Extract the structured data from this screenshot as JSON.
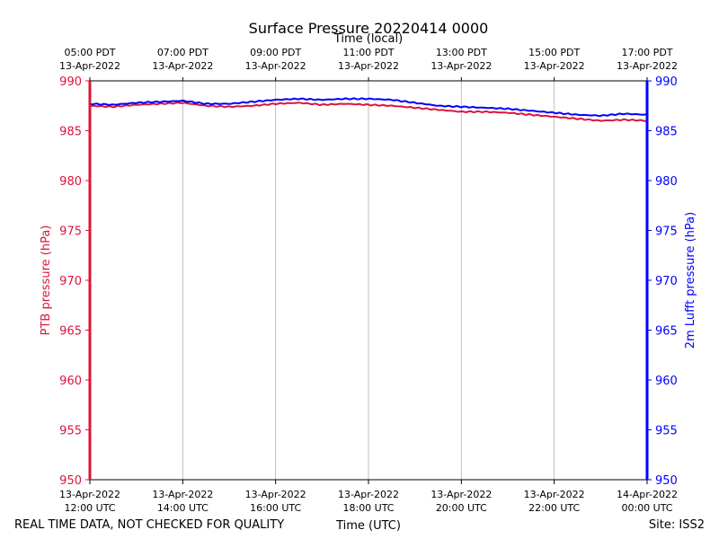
{
  "chart_data": {
    "type": "line",
    "title": "Surface Pressure 20220414 0000",
    "top_axis_label": "Time (local)",
    "xlabel": "Time (UTC)",
    "ylabel_left": "PTB pressure (hPa)",
    "ylabel_right": "2m Lufft pressure (hPa)",
    "ylim": [
      950,
      990
    ],
    "yticks": [
      950,
      955,
      960,
      965,
      970,
      975,
      980,
      985,
      990
    ],
    "xlim_hours": [
      12,
      24
    ],
    "grid": "vertical",
    "bottom_ticks": [
      {
        "date": "13-Apr-2022",
        "time": "12:00 UTC"
      },
      {
        "date": "13-Apr-2022",
        "time": "14:00 UTC"
      },
      {
        "date": "13-Apr-2022",
        "time": "16:00 UTC"
      },
      {
        "date": "13-Apr-2022",
        "time": "18:00 UTC"
      },
      {
        "date": "13-Apr-2022",
        "time": "20:00 UTC"
      },
      {
        "date": "13-Apr-2022",
        "time": "22:00 UTC"
      },
      {
        "date": "14-Apr-2022",
        "time": "00:00 UTC"
      }
    ],
    "top_ticks": [
      {
        "time": "05:00 PDT",
        "date": "13-Apr-2022"
      },
      {
        "time": "07:00 PDT",
        "date": "13-Apr-2022"
      },
      {
        "time": "09:00 PDT",
        "date": "13-Apr-2022"
      },
      {
        "time": "11:00 PDT",
        "date": "13-Apr-2022"
      },
      {
        "time": "13:00 PDT",
        "date": "13-Apr-2022"
      },
      {
        "time": "15:00 PDT",
        "date": "13-Apr-2022"
      },
      {
        "time": "17:00 PDT",
        "date": "13-Apr-2022"
      }
    ],
    "series": [
      {
        "name": "PTB pressure (hPa)",
        "axis": "left",
        "color": "#dc143c",
        "x": [
          12,
          12.5,
          13,
          13.5,
          14,
          14.5,
          15,
          15.5,
          16,
          16.5,
          17,
          17.5,
          18,
          18.5,
          19,
          19.5,
          20,
          20.5,
          21,
          21.5,
          22,
          22.5,
          23,
          23.5,
          24
        ],
        "values": [
          987.5,
          987.4,
          987.6,
          987.7,
          987.8,
          987.5,
          987.4,
          987.5,
          987.7,
          987.8,
          987.6,
          987.7,
          987.6,
          987.5,
          987.3,
          987.1,
          986.9,
          986.9,
          986.8,
          986.6,
          986.4,
          986.2,
          986.0,
          986.1,
          986.0
        ]
      },
      {
        "name": "2m Lufft pressure (hPa)",
        "axis": "right",
        "color": "#0000ff",
        "x": [
          12,
          12.5,
          13,
          13.5,
          14,
          14.5,
          15,
          15.5,
          16,
          16.5,
          17,
          17.5,
          18,
          18.5,
          19,
          19.5,
          20,
          20.5,
          21,
          21.5,
          22,
          22.5,
          23,
          23.5,
          24
        ],
        "values": [
          987.7,
          987.6,
          987.8,
          987.9,
          988.0,
          987.7,
          987.7,
          987.9,
          988.1,
          988.2,
          988.1,
          988.2,
          988.2,
          988.1,
          987.8,
          987.5,
          987.4,
          987.3,
          987.2,
          987.0,
          986.8,
          986.6,
          986.5,
          986.7,
          986.6
        ]
      }
    ]
  },
  "footer": {
    "left_text": "REAL TIME DATA, NOT CHECKED FOR QUALITY",
    "site_text": "Site: ISS2"
  }
}
